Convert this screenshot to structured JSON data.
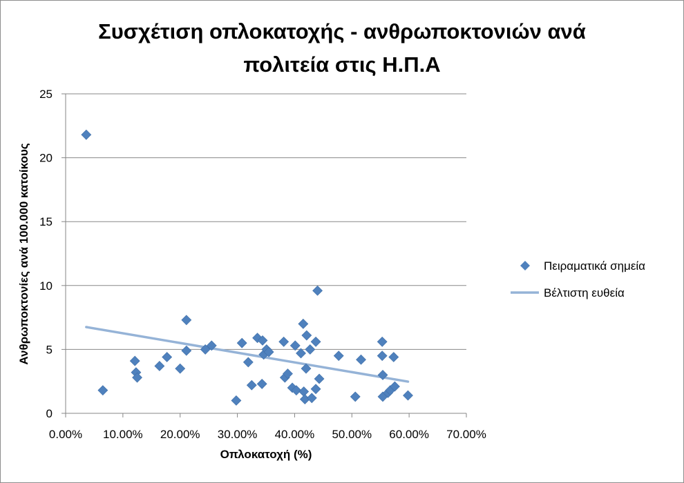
{
  "colors": {
    "marker": "#4F81BD",
    "trendline": "#95B3D7",
    "gridline": "#878787",
    "axis": "#868686"
  },
  "chart_data": {
    "type": "scatter",
    "title": "Συσχέτιση οπλοκατοχής - ανθρωποκτονιών ανά πολιτεία στις Η.Π.Α",
    "title_lines": [
      "Συσχέτιση οπλοκατοχής - ανθρωποκτονιών ανά",
      "πολιτεία στις Η.Π.Α"
    ],
    "xlabel": "Οπλοκατοχή (%)",
    "ylabel": "Ανθρωποκτονίες ανά 100.000 κατοίκους",
    "xlim": [
      0,
      0.7
    ],
    "ylim": [
      0,
      25
    ],
    "x_ticks": [
      0,
      0.1,
      0.2,
      0.3,
      0.4,
      0.5,
      0.6,
      0.7
    ],
    "x_tick_labels": [
      "0.00%",
      "10.00%",
      "20.00%",
      "30.00%",
      "40.00%",
      "50.00%",
      "60.00%",
      "70.00%"
    ],
    "y_ticks": [
      0,
      5,
      10,
      15,
      20,
      25
    ],
    "y_tick_labels": [
      "0",
      "5",
      "10",
      "15",
      "20",
      "25"
    ],
    "grid": "horizontal",
    "legend_position": "right",
    "series": [
      {
        "name": "Πειραματικά σημεία",
        "kind": "points",
        "marker": "diamond",
        "points": [
          [
            0.036,
            21.8
          ],
          [
            0.065,
            1.8
          ],
          [
            0.121,
            4.1
          ],
          [
            0.123,
            3.2
          ],
          [
            0.125,
            2.8
          ],
          [
            0.164,
            3.7
          ],
          [
            0.177,
            4.4
          ],
          [
            0.2,
            3.5
          ],
          [
            0.211,
            7.3
          ],
          [
            0.211,
            4.9
          ],
          [
            0.244,
            5.0
          ],
          [
            0.255,
            5.3
          ],
          [
            0.298,
            1.0
          ],
          [
            0.308,
            5.5
          ],
          [
            0.319,
            4.0
          ],
          [
            0.325,
            2.2
          ],
          [
            0.335,
            5.9
          ],
          [
            0.343,
            2.3
          ],
          [
            0.344,
            5.7
          ],
          [
            0.346,
            4.6
          ],
          [
            0.351,
            5.0
          ],
          [
            0.355,
            4.8
          ],
          [
            0.381,
            5.6
          ],
          [
            0.383,
            2.8
          ],
          [
            0.388,
            3.1
          ],
          [
            0.396,
            2.0
          ],
          [
            0.401,
            5.3
          ],
          [
            0.403,
            1.8
          ],
          [
            0.411,
            4.7
          ],
          [
            0.415,
            7.0
          ],
          [
            0.416,
            1.7
          ],
          [
            0.418,
            1.1
          ],
          [
            0.42,
            3.5
          ],
          [
            0.421,
            6.1
          ],
          [
            0.427,
            5.0
          ],
          [
            0.43,
            1.2
          ],
          [
            0.437,
            5.6
          ],
          [
            0.437,
            1.9
          ],
          [
            0.44,
            9.6
          ],
          [
            0.443,
            2.7
          ],
          [
            0.477,
            4.5
          ],
          [
            0.506,
            1.3
          ],
          [
            0.516,
            4.2
          ],
          [
            0.553,
            5.6
          ],
          [
            0.553,
            4.5
          ],
          [
            0.554,
            3.0
          ],
          [
            0.554,
            1.3
          ],
          [
            0.563,
            1.6
          ],
          [
            0.567,
            1.8
          ],
          [
            0.573,
            4.4
          ],
          [
            0.575,
            2.1
          ],
          [
            0.598,
            1.4
          ]
        ]
      },
      {
        "name": "Βέλτιστη ευθεία",
        "kind": "line",
        "points": [
          [
            0.036,
            6.75
          ],
          [
            0.598,
            2.48
          ]
        ]
      }
    ]
  }
}
